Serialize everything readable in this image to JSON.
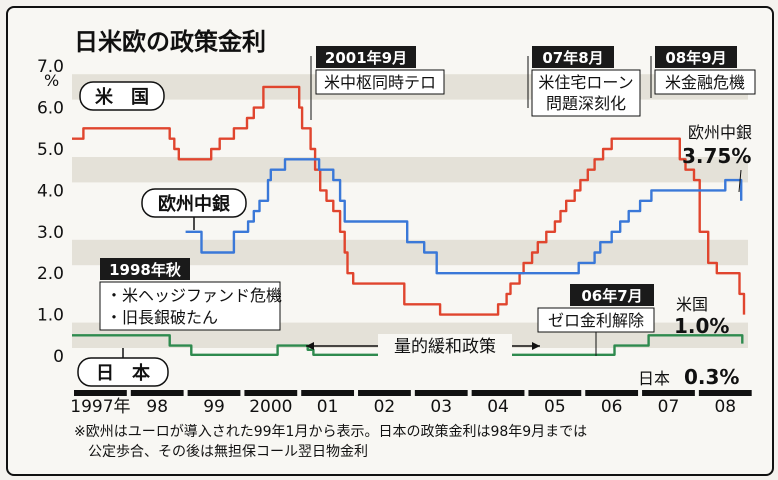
{
  "chart_data": {
    "type": "line",
    "title": "日米欧の政策金利",
    "ylabel": "%",
    "ylim": [
      0,
      7
    ],
    "yticks": [
      "0",
      "1.0",
      "2.0",
      "3.0",
      "4.0",
      "5.0",
      "6.0",
      "7.0"
    ],
    "grid": "alternating horizontal bands",
    "x_range": [
      1997.0,
      2008.9
    ],
    "year_labels": [
      {
        "label": "1997年",
        "t": 1997.5
      },
      {
        "label": "98",
        "t": 1998.5
      },
      {
        "label": "99",
        "t": 1999.5
      },
      {
        "label": "2000",
        "t": 2000.5
      },
      {
        "label": "01",
        "t": 2001.5
      },
      {
        "label": "02",
        "t": 2002.5
      },
      {
        "label": "03",
        "t": 2003.5
      },
      {
        "label": "04",
        "t": 2004.5
      },
      {
        "label": "05",
        "t": 2005.5
      },
      {
        "label": "06",
        "t": 2006.5
      },
      {
        "label": "07",
        "t": 2007.5
      },
      {
        "label": "08",
        "t": 2008.5
      }
    ],
    "series": [
      {
        "name": "米国",
        "color": "#e0452e",
        "points": [
          [
            1997.0,
            5.25
          ],
          [
            1997.2,
            5.5
          ],
          [
            1998.72,
            5.25
          ],
          [
            1998.8,
            5.0
          ],
          [
            1998.88,
            4.75
          ],
          [
            1999.45,
            5.0
          ],
          [
            1999.6,
            5.25
          ],
          [
            1999.85,
            5.5
          ],
          [
            2000.08,
            5.75
          ],
          [
            2000.2,
            6.0
          ],
          [
            2000.37,
            6.5
          ],
          [
            2001.0,
            6.0
          ],
          [
            2001.05,
            5.5
          ],
          [
            2001.2,
            5.0
          ],
          [
            2001.28,
            4.5
          ],
          [
            2001.37,
            4.0
          ],
          [
            2001.48,
            3.75
          ],
          [
            2001.6,
            3.5
          ],
          [
            2001.72,
            3.0
          ],
          [
            2001.8,
            2.5
          ],
          [
            2001.85,
            2.0
          ],
          [
            2001.95,
            1.75
          ],
          [
            2002.85,
            1.25
          ],
          [
            2003.48,
            1.0
          ],
          [
            2004.5,
            1.25
          ],
          [
            2004.65,
            1.5
          ],
          [
            2004.72,
            1.75
          ],
          [
            2004.88,
            2.0
          ],
          [
            2004.95,
            2.25
          ],
          [
            2005.1,
            2.5
          ],
          [
            2005.2,
            2.75
          ],
          [
            2005.35,
            3.0
          ],
          [
            2005.5,
            3.25
          ],
          [
            2005.6,
            3.5
          ],
          [
            2005.7,
            3.75
          ],
          [
            2005.85,
            4.0
          ],
          [
            2005.95,
            4.25
          ],
          [
            2006.08,
            4.5
          ],
          [
            2006.2,
            4.75
          ],
          [
            2006.35,
            5.0
          ],
          [
            2006.5,
            5.25
          ],
          [
            2007.7,
            4.75
          ],
          [
            2007.8,
            4.5
          ],
          [
            2007.95,
            4.25
          ],
          [
            2008.05,
            3.0
          ],
          [
            2008.2,
            2.25
          ],
          [
            2008.35,
            2.0
          ],
          [
            2008.75,
            1.5
          ],
          [
            2008.83,
            1.0
          ]
        ]
      },
      {
        "name": "欧州中銀",
        "color": "#3a78d8",
        "points": [
          [
            1999.0,
            3.0
          ],
          [
            1999.28,
            2.5
          ],
          [
            1999.85,
            3.0
          ],
          [
            2000.1,
            3.25
          ],
          [
            2000.2,
            3.5
          ],
          [
            2000.3,
            3.75
          ],
          [
            2000.45,
            4.25
          ],
          [
            2000.5,
            4.5
          ],
          [
            2000.75,
            4.75
          ],
          [
            2001.35,
            4.5
          ],
          [
            2001.6,
            4.25
          ],
          [
            2001.72,
            3.75
          ],
          [
            2001.8,
            3.25
          ],
          [
            2002.9,
            2.75
          ],
          [
            2003.2,
            2.5
          ],
          [
            2003.42,
            2.0
          ],
          [
            2005.92,
            2.25
          ],
          [
            2006.2,
            2.5
          ],
          [
            2006.3,
            2.75
          ],
          [
            2006.5,
            3.0
          ],
          [
            2006.65,
            3.25
          ],
          [
            2006.8,
            3.5
          ],
          [
            2007.0,
            3.75
          ],
          [
            2007.2,
            4.0
          ],
          [
            2008.5,
            4.25
          ],
          [
            2008.78,
            3.75
          ]
        ]
      },
      {
        "name": "日本",
        "color": "#2e8a4e",
        "points": [
          [
            1997.0,
            0.5
          ],
          [
            1998.72,
            0.25
          ],
          [
            1999.1,
            0.03
          ],
          [
            2000.62,
            0.25
          ],
          [
            2001.15,
            0.15
          ],
          [
            2001.25,
            0.03
          ],
          [
            2006.55,
            0.25
          ],
          [
            2007.15,
            0.5
          ],
          [
            2008.8,
            0.3
          ]
        ]
      }
    ]
  },
  "labels": {
    "us": "米　国",
    "ecb": "欧州中銀",
    "jp": "日　本",
    "ecb_end": "欧州中銀",
    "ecb_end_value": "3.75%",
    "us_end": "米国",
    "us_end_value": "1.0%",
    "jp_end": "日本",
    "jp_end_value": "0.3%"
  },
  "events": [
    {
      "date": "2001年9月",
      "text": [
        "米中枢同時テロ"
      ]
    },
    {
      "date": "07年8月",
      "text": [
        "米住宅ローン",
        "問題深刻化"
      ]
    },
    {
      "date": "08年9月",
      "text": [
        "米金融危機"
      ]
    },
    {
      "date": "1998年秋",
      "text": [
        "・米ヘッジファンド危機",
        "・旧長銀破たん"
      ]
    },
    {
      "date": "06年7月",
      "text": [
        "ゼロ金利解除"
      ]
    }
  ],
  "qe_label": "量的緩和政策",
  "footnote": [
    "※欧州はユーロが導入された99年1月から表示。日本の政策金利は98年9月までは",
    "公定歩合、その後は無担保コール翌日物金利"
  ]
}
